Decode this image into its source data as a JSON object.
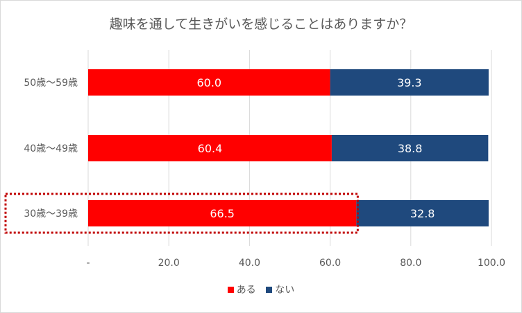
{
  "chart_data": {
    "type": "bar",
    "orientation": "horizontal",
    "stacked": true,
    "title": "趣味を通して生きがいを感じることはありますか？",
    "categories": [
      "50歳〜59歳",
      "40歳〜49歳",
      "30歳〜39歳"
    ],
    "series": [
      {
        "name": "ある",
        "color": "#ff0000",
        "values": [
          60.0,
          60.4,
          66.5
        ]
      },
      {
        "name": "ない",
        "color": "#1f497d",
        "values": [
          39.3,
          38.8,
          32.8
        ]
      }
    ],
    "xlim": [
      0,
      100
    ],
    "xticks": [
      "-",
      "20.0",
      "40.0",
      "60.0",
      "80.0",
      "100.0"
    ],
    "grid": true,
    "legend_position": "bottom",
    "highlighted_category": "30歳〜39歳",
    "highlight_color": "#c00000"
  }
}
